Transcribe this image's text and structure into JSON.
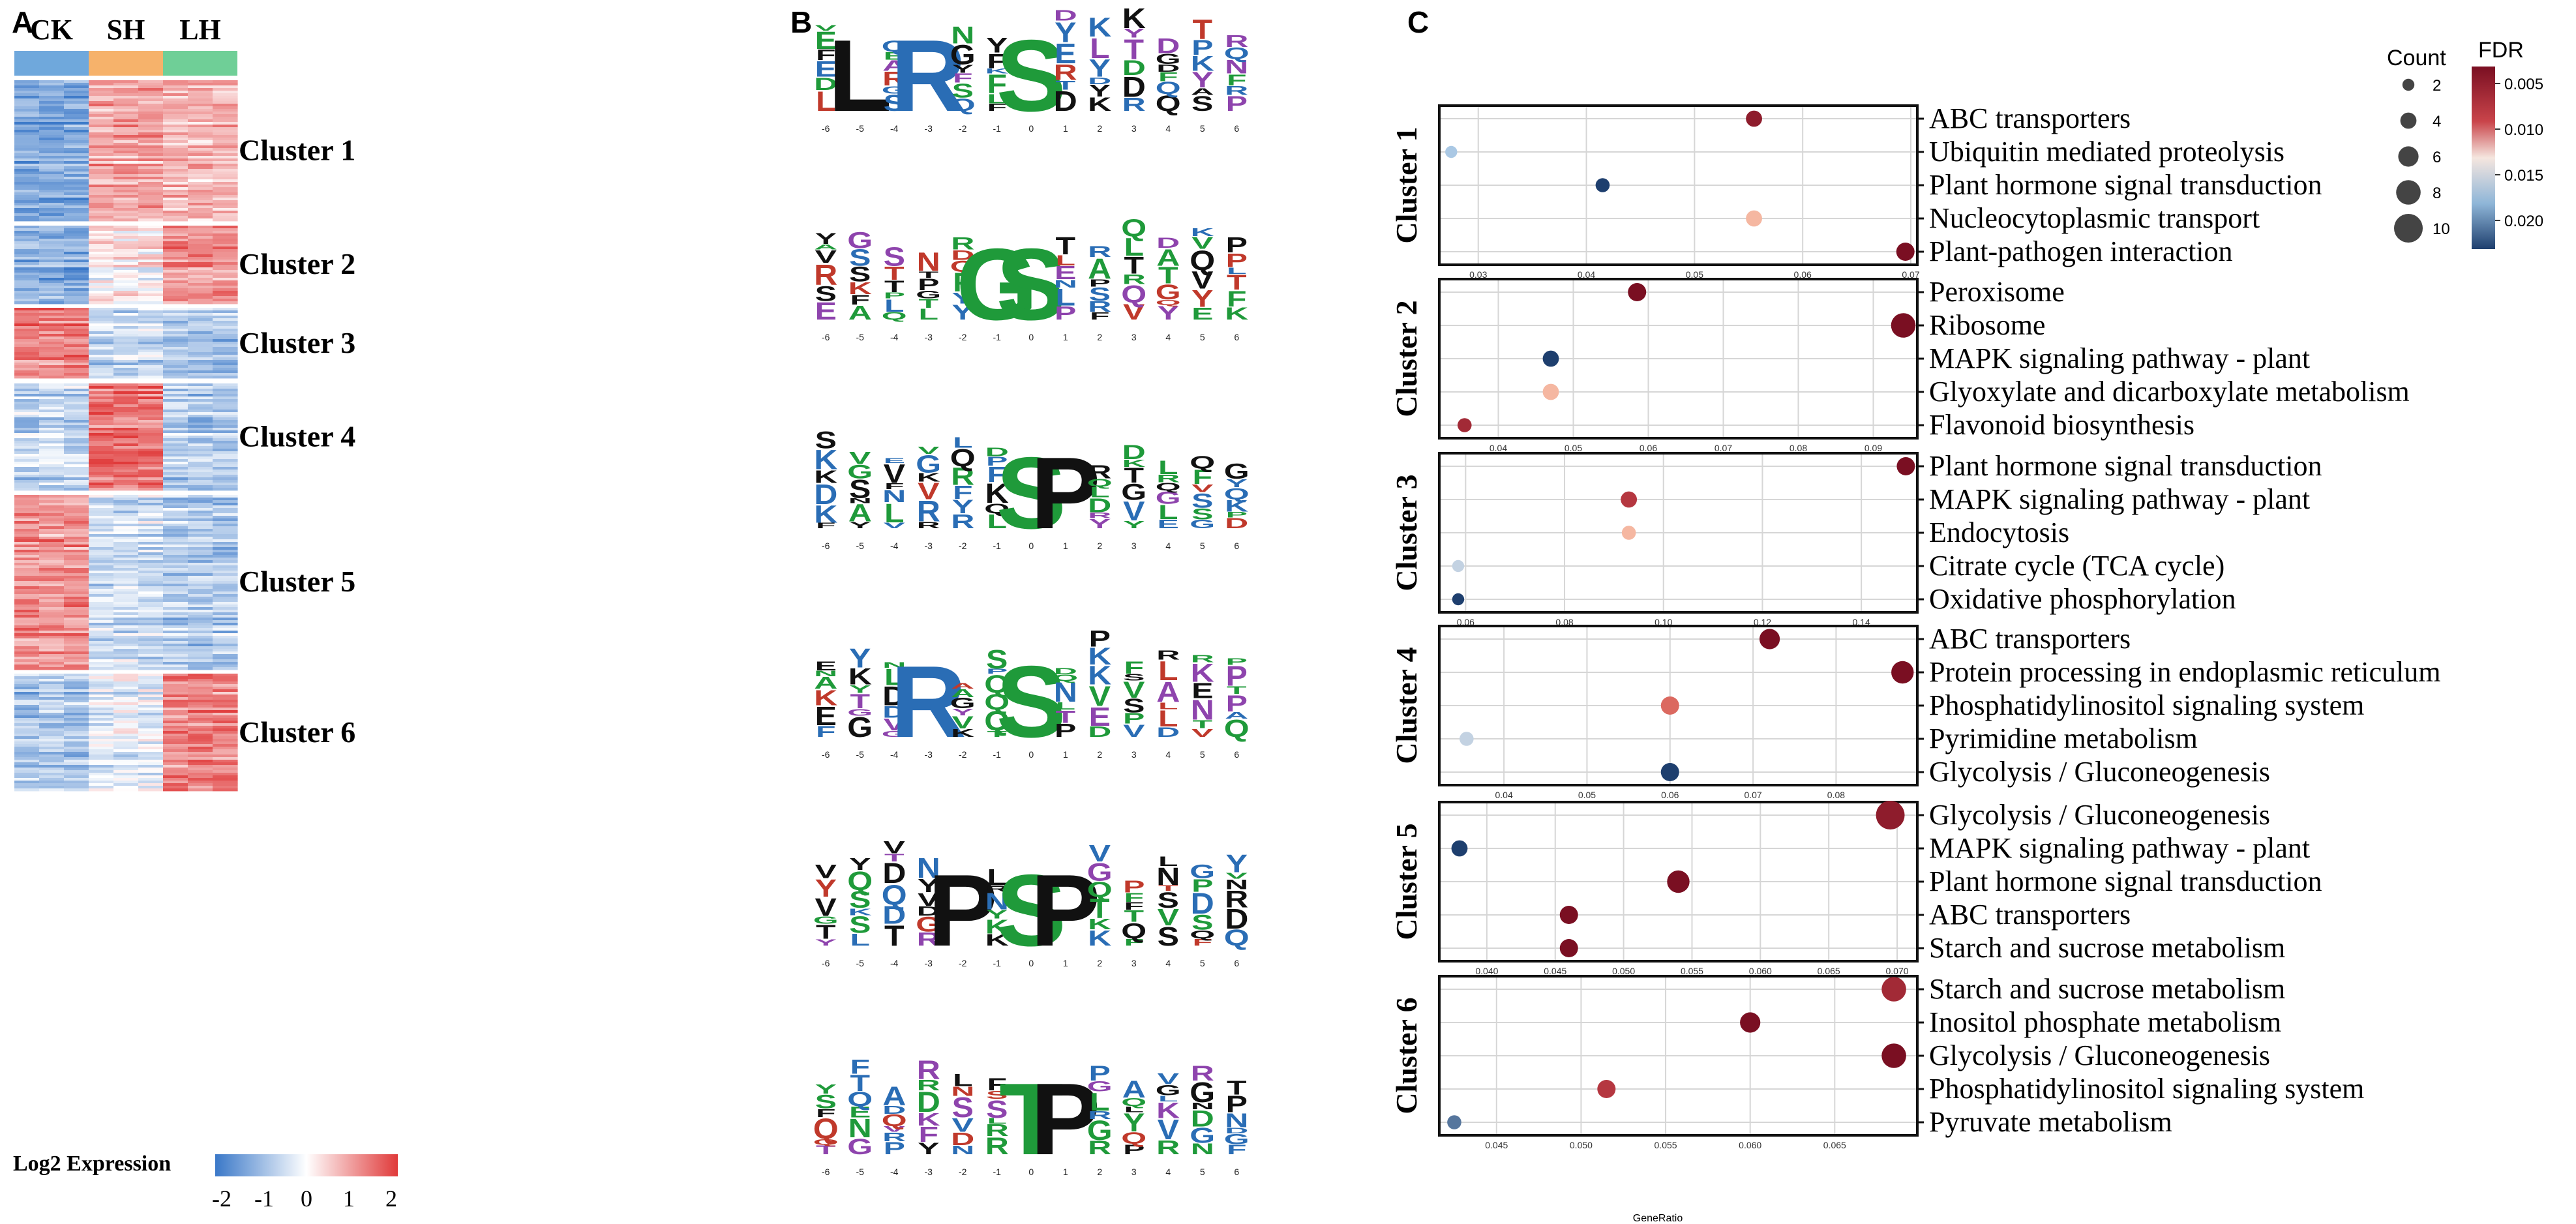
{
  "panels": {
    "a": "A",
    "b": "B",
    "c": "C"
  },
  "heatmap": {
    "groups": [
      {
        "name": "CK",
        "color": "#6fa8dc"
      },
      {
        "name": "SH",
        "color": "#f6b26b"
      },
      {
        "name": "LH",
        "color": "#6fcf97"
      }
    ],
    "clusters": [
      {
        "name": "Cluster 1",
        "pattern": [
          -1.3,
          0.9,
          0.7
        ]
      },
      {
        "name": "Cluster 2",
        "pattern": [
          -1.2,
          0.1,
          1.1
        ]
      },
      {
        "name": "Cluster 3",
        "pattern": [
          1.3,
          -0.6,
          -0.9
        ]
      },
      {
        "name": "Cluster 4",
        "pattern": [
          -0.6,
          1.4,
          -0.8
        ]
      },
      {
        "name": "Cluster 5",
        "pattern": [
          1.1,
          -0.5,
          -0.8
        ]
      },
      {
        "name": "Cluster 6",
        "pattern": [
          -0.9,
          -0.3,
          1.2
        ]
      }
    ],
    "legend_title": "Log2 Expression",
    "scale_ticks": [
      "-2",
      "-1",
      "0",
      "1",
      "2"
    ]
  },
  "motifs": {
    "positions": [
      "-6",
      "-5",
      "-4",
      "-3",
      "-2",
      "-1",
      "0",
      "1",
      "2",
      "3",
      "4",
      "5",
      "6"
    ],
    "logos": [
      {
        "big": [
          {
            "pos": "-5",
            "letter": "L",
            "color": "#111111"
          },
          {
            "pos": "-3",
            "letter": "R",
            "color": "#2a6db5"
          },
          {
            "pos": "0",
            "letter": "S",
            "color": "#1f9a3a"
          }
        ]
      },
      {
        "big": [
          {
            "pos": "-1",
            "letter": "G",
            "color": "#1f9a3a"
          },
          {
            "pos": "0",
            "letter": "S",
            "color": "#1f9a3a"
          }
        ]
      },
      {
        "big": [
          {
            "pos": "0",
            "letter": "S",
            "color": "#1f9a3a"
          },
          {
            "pos": "1",
            "letter": "P",
            "color": "#111111"
          }
        ]
      },
      {
        "big": [
          {
            "pos": "-3",
            "letter": "R",
            "color": "#2a6db5"
          },
          {
            "pos": "0",
            "letter": "S",
            "color": "#1f9a3a"
          }
        ]
      },
      {
        "big": [
          {
            "pos": "-2",
            "letter": "P",
            "color": "#111111"
          },
          {
            "pos": "0",
            "letter": "S",
            "color": "#1f9a3a"
          },
          {
            "pos": "1",
            "letter": "P",
            "color": "#111111"
          }
        ]
      },
      {
        "big": [
          {
            "pos": "0",
            "letter": "T",
            "color": "#1f9a3a"
          },
          {
            "pos": "1",
            "letter": "P",
            "color": "#111111"
          }
        ]
      }
    ]
  },
  "chart_data": {
    "type": "scatter",
    "xlabel": "GeneRatio",
    "legend": {
      "count_title": "Count",
      "count_ticks": [
        "2",
        "4",
        "6",
        "8",
        "10"
      ],
      "fdr_title": "FDR",
      "fdr_ticks": [
        "0.005",
        "0.010",
        "0.015",
        "0.020"
      ],
      "placement": "top-right"
    },
    "clusters": [
      {
        "name": "Cluster 1",
        "xlim": [
          0.027,
          0.07
        ],
        "xticks": [
          "0.03",
          "0.04",
          "0.05",
          "0.06",
          "0.07"
        ],
        "xtick_values": [
          0.03,
          0.04,
          0.05,
          0.06,
          0.07
        ],
        "terms": [
          {
            "term": "ABC transporters",
            "x": 0.0555,
            "fdr": 0.003,
            "count": 4
          },
          {
            "term": "Ubiquitin mediated proteolysis",
            "x": 0.0275,
            "fdr": 0.017,
            "count": 2
          },
          {
            "term": "Plant hormone signal transduction",
            "x": 0.0415,
            "fdr": 0.022,
            "count": 3
          },
          {
            "term": "Nucleocytoplasmic transport",
            "x": 0.0555,
            "fdr": 0.012,
            "count": 4
          },
          {
            "term": "Plant-pathogen interaction",
            "x": 0.0695,
            "fdr": 0.002,
            "count": 5
          }
        ]
      },
      {
        "name": "Cluster 2",
        "xlim": [
          0.033,
          0.095
        ],
        "xticks": [
          "0.04",
          "0.05",
          "0.06",
          "0.07",
          "0.08",
          "0.09"
        ],
        "xtick_values": [
          0.04,
          0.05,
          0.06,
          0.07,
          0.08,
          0.09
        ],
        "terms": [
          {
            "term": "Peroxisome",
            "x": 0.0585,
            "fdr": 0.002,
            "count": 5
          },
          {
            "term": "Ribosome",
            "x": 0.094,
            "fdr": 0.002,
            "count": 8
          },
          {
            "term": "MAPK signaling pathway - plant",
            "x": 0.047,
            "fdr": 0.022,
            "count": 4
          },
          {
            "term": "Glyoxylate and dicarboxylate metabolism",
            "x": 0.047,
            "fdr": 0.012,
            "count": 4
          },
          {
            "term": "Flavonoid biosynthesis",
            "x": 0.0355,
            "fdr": 0.004,
            "count": 3
          }
        ]
      },
      {
        "name": "Cluster 3",
        "xlim": [
          0.056,
          0.15
        ],
        "xticks": [
          "0.06",
          "0.08",
          "0.10",
          "0.12",
          "0.14"
        ],
        "xtick_values": [
          0.06,
          0.08,
          0.1,
          0.12,
          0.14
        ],
        "terms": [
          {
            "term": "Plant hormone signal transduction",
            "x": 0.149,
            "fdr": 0.002,
            "count": 5
          },
          {
            "term": "MAPK signaling pathway - plant",
            "x": 0.093,
            "fdr": 0.005,
            "count": 4
          },
          {
            "term": "Endocytosis",
            "x": 0.093,
            "fdr": 0.012,
            "count": 3
          },
          {
            "term": "Citrate cycle (TCA cycle)",
            "x": 0.0585,
            "fdr": 0.016,
            "count": 2
          },
          {
            "term": "Oxidative phosphorylation",
            "x": 0.0585,
            "fdr": 0.022,
            "count": 2
          }
        ]
      },
      {
        "name": "Cluster 4",
        "xlim": [
          0.033,
          0.089
        ],
        "xticks": [
          "0.04",
          "0.05",
          "0.06",
          "0.07",
          "0.08"
        ],
        "xtick_values": [
          0.04,
          0.05,
          0.06,
          0.07,
          0.08
        ],
        "terms": [
          {
            "term": "ABC transporters",
            "x": 0.072,
            "fdr": 0.002,
            "count": 6
          },
          {
            "term": "Protein processing in endoplasmic reticulum",
            "x": 0.088,
            "fdr": 0.002,
            "count": 7
          },
          {
            "term": "Phosphatidylinositol signaling system",
            "x": 0.06,
            "fdr": 0.008,
            "count": 5
          },
          {
            "term": "Pyrimidine metabolism",
            "x": 0.0355,
            "fdr": 0.016,
            "count": 3
          },
          {
            "term": "Glycolysis / Gluconeogenesis",
            "x": 0.06,
            "fdr": 0.022,
            "count": 5
          }
        ]
      },
      {
        "name": "Cluster 5",
        "xlim": [
          0.037,
          0.071
        ],
        "xticks": [
          "0.040",
          "0.045",
          "0.050",
          "0.055",
          "0.060",
          "0.065",
          "0.070"
        ],
        "xtick_values": [
          0.04,
          0.045,
          0.05,
          0.055,
          0.06,
          0.065,
          0.07
        ],
        "terms": [
          {
            "term": "Glycolysis / Gluconeogenesis",
            "x": 0.0695,
            "fdr": 0.003,
            "count": 10
          },
          {
            "term": "MAPK signaling pathway - plant",
            "x": 0.038,
            "fdr": 0.022,
            "count": 4
          },
          {
            "term": "Plant hormone signal transduction",
            "x": 0.054,
            "fdr": 0.002,
            "count": 7
          },
          {
            "term": "ABC transporters",
            "x": 0.046,
            "fdr": 0.002,
            "count": 5
          },
          {
            "term": "Starch and sucrose metabolism",
            "x": 0.046,
            "fdr": 0.002,
            "count": 5
          }
        ]
      },
      {
        "name": "Cluster 6",
        "xlim": [
          0.042,
          0.0695
        ],
        "xticks": [
          "0.045",
          "0.050",
          "0.055",
          "0.060",
          "0.065"
        ],
        "xtick_values": [
          0.045,
          0.05,
          0.055,
          0.06,
          0.065
        ],
        "terms": [
          {
            "term": "Starch and sucrose metabolism",
            "x": 0.0685,
            "fdr": 0.004,
            "count": 8
          },
          {
            "term": "Inositol phosphate metabolism",
            "x": 0.06,
            "fdr": 0.002,
            "count": 6
          },
          {
            "term": "Glycolysis / Gluconeogenesis",
            "x": 0.0685,
            "fdr": 0.002,
            "count": 8
          },
          {
            "term": "Phosphatidylinositol signaling system",
            "x": 0.0515,
            "fdr": 0.005,
            "count": 5
          },
          {
            "term": "Pyruvate metabolism",
            "x": 0.0425,
            "fdr": 0.02,
            "count": 3
          }
        ]
      }
    ]
  }
}
